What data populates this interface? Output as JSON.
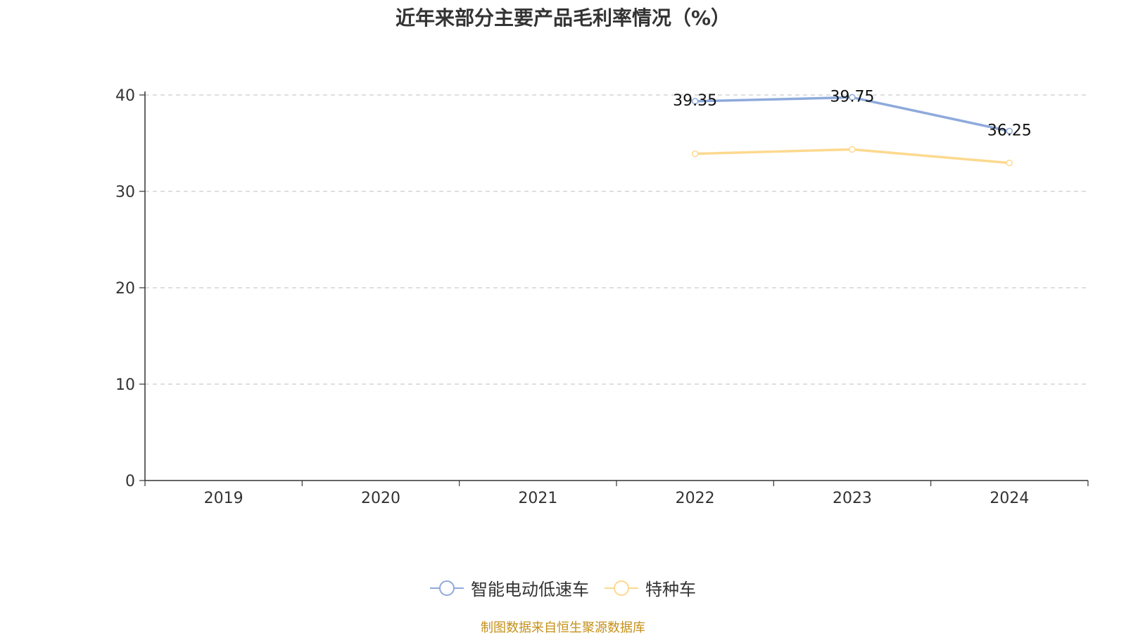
{
  "chart_data": {
    "type": "line",
    "title": "近年来部分主要产品毛利率情况（%）",
    "categories": [
      "2019",
      "2020",
      "2021",
      "2022",
      "2023",
      "2024"
    ],
    "y_ticks": [
      "0",
      "10",
      "20",
      "30",
      "40"
    ],
    "ylim": [
      0,
      40
    ],
    "grid": true,
    "legend_position": "bottom",
    "series": [
      {
        "name": "智能电动低速车",
        "color": "#8eaadb",
        "values": [
          null,
          null,
          null,
          39.35,
          39.75,
          36.25
        ],
        "labels": [
          "",
          "",
          "",
          "39.35",
          "39.75",
          "36.25"
        ]
      },
      {
        "name": "特种车",
        "color": "#fdd98f",
        "values": [
          null,
          null,
          null,
          33.9,
          34.35,
          32.95
        ],
        "labels": [
          "",
          "",
          "",
          "",
          "",
          ""
        ]
      }
    ]
  },
  "source": "制图数据来自恒生聚源数据库"
}
